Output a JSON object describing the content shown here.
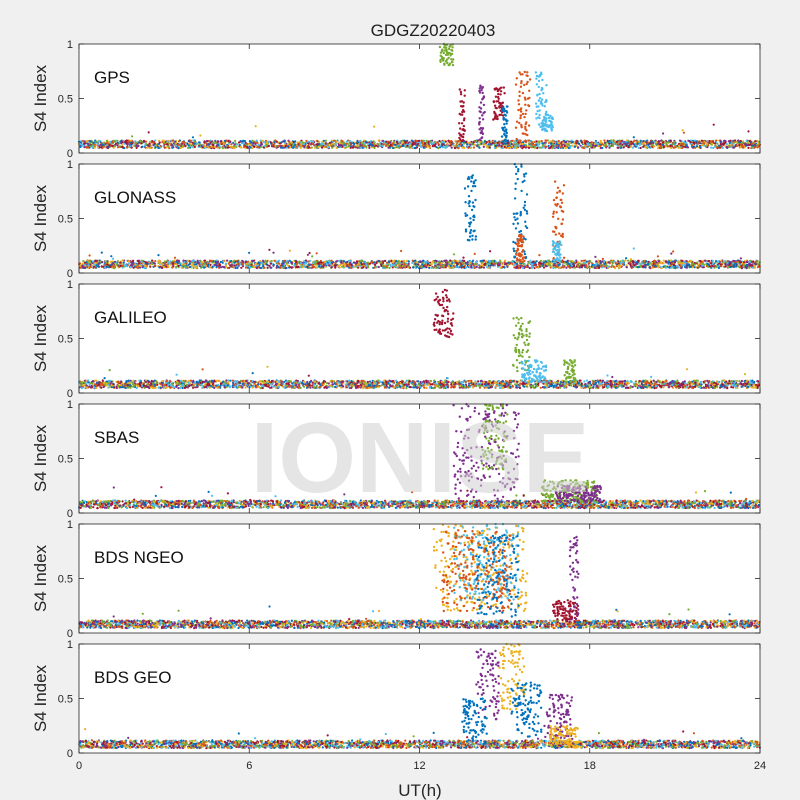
{
  "chart_data": {
    "type": "scatter",
    "title": "GDGZ20220403",
    "xlabel": "UT(h)",
    "ylabel": "S4 Index",
    "xlim": [
      0,
      24
    ],
    "ylim": [
      0,
      1
    ],
    "xticks": [
      "0",
      "6",
      "12",
      "18",
      "24"
    ],
    "yticks": [
      "0",
      "0.5",
      "1"
    ],
    "grid": false,
    "watermark": "IONISE",
    "series_colors": [
      "#0072bd",
      "#d95319",
      "#edb120",
      "#7e2f8e",
      "#77ac30",
      "#4dbeee",
      "#a2142f"
    ],
    "panels": [
      {
        "label": "GPS",
        "baseline": 0.08,
        "events": [
          {
            "x": [
              12.7,
              13.2
            ],
            "y": [
              0.8,
              1.0
            ],
            "series": 4
          },
          {
            "x": [
              13.4,
              13.6
            ],
            "y": [
              0.1,
              0.6
            ],
            "series": 6
          },
          {
            "x": [
              14.1,
              14.3
            ],
            "y": [
              0.1,
              0.65
            ],
            "series": 3
          },
          {
            "x": [
              14.6,
              15.0
            ],
            "y": [
              0.3,
              0.6
            ],
            "series": 6
          },
          {
            "x": [
              14.9,
              15.1
            ],
            "y": [
              0.1,
              0.45
            ],
            "series": 0
          },
          {
            "x": [
              15.4,
              15.9
            ],
            "y": [
              0.1,
              0.75
            ],
            "series": 1
          },
          {
            "x": [
              16.1,
              16.5
            ],
            "y": [
              0.2,
              0.75
            ],
            "series": 5
          },
          {
            "x": [
              16.3,
              16.7
            ],
            "y": [
              0.2,
              0.35
            ],
            "series": 5
          }
        ]
      },
      {
        "label": "GLONASS",
        "baseline": 0.08,
        "events": [
          {
            "x": [
              13.6,
              14.0
            ],
            "y": [
              0.3,
              0.9
            ],
            "series": 0
          },
          {
            "x": [
              15.3,
              15.8
            ],
            "y": [
              0.1,
              1.0
            ],
            "series": 0
          },
          {
            "x": [
              15.4,
              15.7
            ],
            "y": [
              0.1,
              0.35
            ],
            "series": 1
          },
          {
            "x": [
              16.7,
              17.1
            ],
            "y": [
              0.1,
              0.85
            ],
            "series": 1
          },
          {
            "x": [
              16.7,
              17.0
            ],
            "y": [
              0.1,
              0.3
            ],
            "series": 5
          }
        ]
      },
      {
        "label": "GALILEO",
        "baseline": 0.08,
        "events": [
          {
            "x": [
              12.5,
              13.2
            ],
            "y": [
              0.5,
              0.95
            ],
            "series": 6
          },
          {
            "x": [
              15.3,
              15.9
            ],
            "y": [
              0.2,
              0.7
            ],
            "series": 4
          },
          {
            "x": [
              15.6,
              16.5
            ],
            "y": [
              0.1,
              0.3
            ],
            "series": 5
          },
          {
            "x": [
              17.1,
              17.5
            ],
            "y": [
              0.1,
              0.3
            ],
            "series": 4
          }
        ]
      },
      {
        "label": "SBAS",
        "baseline": 0.08,
        "events": [
          {
            "x": [
              13.2,
              15.5
            ],
            "y": [
              0.1,
              1.0
            ],
            "series": 3
          },
          {
            "x": [
              14.2,
              15.1
            ],
            "y": [
              0.4,
              1.0
            ],
            "series": 4
          },
          {
            "x": [
              16.3,
              18.3
            ],
            "y": [
              0.1,
              0.3
            ],
            "series": 4
          },
          {
            "x": [
              16.8,
              18.4
            ],
            "y": [
              0.1,
              0.25
            ],
            "series": 3
          }
        ]
      },
      {
        "label": "BDS NGEO",
        "baseline": 0.08,
        "events": [
          {
            "x": [
              12.5,
              15.8
            ],
            "y": [
              0.2,
              1.0
            ],
            "series": 2
          },
          {
            "x": [
              13.2,
              15.5
            ],
            "y": [
              0.3,
              1.0
            ],
            "series": 5
          },
          {
            "x": [
              12.8,
              15.2
            ],
            "y": [
              0.2,
              0.95
            ],
            "series": 1
          },
          {
            "x": [
              14.0,
              15.5
            ],
            "y": [
              0.15,
              0.9
            ],
            "series": 0
          },
          {
            "x": [
              16.7,
              17.6
            ],
            "y": [
              0.1,
              0.3
            ],
            "series": 6
          },
          {
            "x": [
              17.3,
              17.6
            ],
            "y": [
              0.1,
              0.9
            ],
            "series": 3
          }
        ]
      },
      {
        "label": "BDS GEO",
        "baseline": 0.08,
        "events": [
          {
            "x": [
              14.0,
              14.8
            ],
            "y": [
              0.3,
              0.95
            ],
            "series": 3
          },
          {
            "x": [
              13.5,
              14.4
            ],
            "y": [
              0.1,
              0.5
            ],
            "series": 0
          },
          {
            "x": [
              14.8,
              15.7
            ],
            "y": [
              0.4,
              1.0
            ],
            "series": 2
          },
          {
            "x": [
              15.2,
              16.3
            ],
            "y": [
              0.15,
              0.65
            ],
            "series": 0
          },
          {
            "x": [
              16.4,
              17.4
            ],
            "y": [
              0.1,
              0.55
            ],
            "series": 3
          },
          {
            "x": [
              16.6,
              17.6
            ],
            "y": [
              0.05,
              0.25
            ],
            "series": 2
          }
        ]
      }
    ]
  }
}
